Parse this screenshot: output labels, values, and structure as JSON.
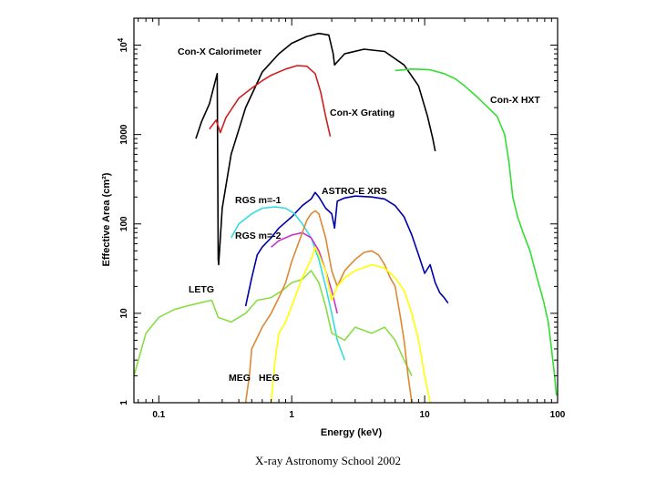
{
  "chart_data": {
    "type": "line",
    "title": "",
    "xlabel": "Energy (keV)",
    "ylabel": "Effective Area (cm²)",
    "xscale": "log",
    "yscale": "log",
    "xlim": [
      0.065,
      100
    ],
    "ylim": [
      1,
      20000
    ],
    "x_ticks": [
      0.1,
      1,
      10,
      100
    ],
    "x_tick_labels": [
      "0.1",
      "1",
      "10",
      "100"
    ],
    "y_ticks": [
      1,
      10,
      100,
      1000,
      10000
    ],
    "y_tick_labels": [
      "1",
      "10",
      "100",
      "1000",
      "10^4"
    ],
    "grid": false,
    "legend": "inline labels",
    "series": [
      {
        "name": "Con-X Calorimeter",
        "label": "Con-X Calorimeter",
        "color": "#000000",
        "points": [
          [
            0.19,
            900
          ],
          [
            0.21,
            1400
          ],
          [
            0.24,
            2200
          ],
          [
            0.275,
            4800
          ],
          [
            0.28,
            40
          ],
          [
            0.282,
            35
          ],
          [
            0.3,
            150
          ],
          [
            0.35,
            600
          ],
          [
            0.45,
            2000
          ],
          [
            0.6,
            5000
          ],
          [
            0.8,
            8000
          ],
          [
            1.0,
            10500
          ],
          [
            1.3,
            12500
          ],
          [
            1.6,
            13500
          ],
          [
            1.9,
            13000
          ],
          [
            2.05,
            8000
          ],
          [
            2.1,
            6000
          ],
          [
            2.2,
            6500
          ],
          [
            2.5,
            8000
          ],
          [
            3.5,
            9000
          ],
          [
            5,
            8500
          ],
          [
            7,
            6000
          ],
          [
            9,
            3500
          ],
          [
            10.5,
            1600
          ],
          [
            11.5,
            900
          ],
          [
            12,
            650
          ]
        ]
      },
      {
        "name": "Con-X Grating",
        "label": "Con-X Grating",
        "color": "#cc1f1f",
        "points": [
          [
            0.24,
            1150
          ],
          [
            0.27,
            1450
          ],
          [
            0.29,
            1050
          ],
          [
            0.32,
            1550
          ],
          [
            0.4,
            2550
          ],
          [
            0.5,
            3300
          ],
          [
            0.6,
            4000
          ],
          [
            0.7,
            4600
          ],
          [
            0.9,
            5400
          ],
          [
            1.1,
            5900
          ],
          [
            1.3,
            5800
          ],
          [
            1.5,
            4800
          ],
          [
            1.65,
            3000
          ],
          [
            1.8,
            1600
          ],
          [
            1.95,
            950
          ]
        ]
      },
      {
        "name": "Con-X HXT",
        "label": "Con-X HXT",
        "color": "#33dd33",
        "points": [
          [
            6,
            5200
          ],
          [
            8,
            5400
          ],
          [
            11,
            5300
          ],
          [
            14,
            4800
          ],
          [
            17,
            4200
          ],
          [
            20,
            3500
          ],
          [
            25,
            2600
          ],
          [
            30,
            2000
          ],
          [
            35,
            1600
          ],
          [
            40,
            1000
          ],
          [
            43,
            500
          ],
          [
            46,
            200
          ],
          [
            50,
            120
          ],
          [
            55,
            80
          ],
          [
            62,
            50
          ],
          [
            70,
            25
          ],
          [
            78,
            14
          ],
          [
            85,
            8
          ],
          [
            90,
            4
          ],
          [
            95,
            2
          ],
          [
            98,
            1.2
          ]
        ]
      },
      {
        "name": "ASTRO-E XRS",
        "label": "ASTRO-E XRS",
        "color": "#0000aa",
        "points": [
          [
            0.45,
            12
          ],
          [
            0.5,
            25
          ],
          [
            0.55,
            45
          ],
          [
            0.6,
            55
          ],
          [
            0.7,
            70
          ],
          [
            0.8,
            90
          ],
          [
            1.0,
            120
          ],
          [
            1.2,
            160
          ],
          [
            1.4,
            190
          ],
          [
            1.5,
            225
          ],
          [
            1.6,
            200
          ],
          [
            1.8,
            150
          ],
          [
            2.0,
            130
          ],
          [
            2.1,
            90
          ],
          [
            2.2,
            180
          ],
          [
            2.5,
            195
          ],
          [
            3,
            205
          ],
          [
            4,
            200
          ],
          [
            5,
            190
          ],
          [
            6,
            160
          ],
          [
            7,
            120
          ],
          [
            8,
            75
          ],
          [
            9,
            45
          ],
          [
            10,
            28
          ],
          [
            11,
            35
          ],
          [
            12,
            22
          ],
          [
            13,
            17
          ],
          [
            14,
            15
          ],
          [
            15,
            13
          ]
        ]
      },
      {
        "name": "RGS m=-1",
        "label": "RGS m=-1",
        "color": "#33dddd",
        "points": [
          [
            0.35,
            70
          ],
          [
            0.4,
            100
          ],
          [
            0.5,
            130
          ],
          [
            0.6,
            150
          ],
          [
            0.75,
            155
          ],
          [
            0.9,
            150
          ],
          [
            1.05,
            130
          ],
          [
            1.2,
            100
          ],
          [
            1.4,
            70
          ],
          [
            1.6,
            40
          ],
          [
            1.8,
            20
          ],
          [
            2.0,
            10
          ],
          [
            2.2,
            5
          ],
          [
            2.5,
            3
          ]
        ]
      },
      {
        "name": "RGS m=-2",
        "label": "RGS m=-2",
        "color": "#cc33cc",
        "points": [
          [
            0.7,
            55
          ],
          [
            0.8,
            65
          ],
          [
            1.0,
            75
          ],
          [
            1.2,
            80
          ],
          [
            1.4,
            70
          ],
          [
            1.6,
            50
          ],
          [
            1.8,
            30
          ],
          [
            2.0,
            18
          ],
          [
            2.2,
            10
          ]
        ]
      },
      {
        "name": "LETG",
        "label": "LETG",
        "color": "#88dd44",
        "points": [
          [
            0.065,
            2
          ],
          [
            0.08,
            6
          ],
          [
            0.1,
            9
          ],
          [
            0.13,
            11
          ],
          [
            0.16,
            12
          ],
          [
            0.2,
            13
          ],
          [
            0.25,
            14
          ],
          [
            0.28,
            9
          ],
          [
            0.35,
            8
          ],
          [
            0.45,
            10
          ],
          [
            0.55,
            14
          ],
          [
            0.7,
            15
          ],
          [
            0.85,
            18
          ],
          [
            1.0,
            22
          ],
          [
            1.2,
            24
          ],
          [
            1.4,
            30
          ],
          [
            1.6,
            22
          ],
          [
            1.8,
            12
          ],
          [
            2.0,
            6
          ],
          [
            2.5,
            5
          ],
          [
            3,
            7
          ],
          [
            4,
            6
          ],
          [
            5,
            7
          ],
          [
            6,
            5
          ],
          [
            7,
            3
          ],
          [
            8,
            2
          ]
        ]
      },
      {
        "name": "MEG",
        "label": "MEG",
        "color": "#dd8833",
        "points": [
          [
            0.45,
            1
          ],
          [
            0.48,
            2
          ],
          [
            0.5,
            4
          ],
          [
            0.6,
            7
          ],
          [
            0.7,
            10
          ],
          [
            0.8,
            15
          ],
          [
            0.9,
            22
          ],
          [
            1.0,
            38
          ],
          [
            1.2,
            80
          ],
          [
            1.3,
            110
          ],
          [
            1.4,
            130
          ],
          [
            1.5,
            140
          ],
          [
            1.6,
            130
          ],
          [
            1.8,
            70
          ],
          [
            2.0,
            30
          ],
          [
            2.2,
            20
          ],
          [
            2.5,
            30
          ],
          [
            3,
            40
          ],
          [
            3.5,
            48
          ],
          [
            4,
            50
          ],
          [
            4.5,
            45
          ],
          [
            5,
            35
          ],
          [
            5.5,
            25
          ],
          [
            6,
            20
          ],
          [
            6.5,
            10
          ],
          [
            7,
            5
          ],
          [
            7.5,
            2
          ],
          [
            8,
            1
          ]
        ]
      },
      {
        "name": "HEG",
        "label": "HEG",
        "color": "#ffff00",
        "points": [
          [
            0.7,
            1
          ],
          [
            0.75,
            3
          ],
          [
            0.8,
            6
          ],
          [
            0.9,
            8
          ],
          [
            1.0,
            12
          ],
          [
            1.2,
            25
          ],
          [
            1.4,
            40
          ],
          [
            1.5,
            55
          ],
          [
            1.6,
            45
          ],
          [
            1.8,
            30
          ],
          [
            2.0,
            14
          ],
          [
            2.2,
            20
          ],
          [
            2.5,
            25
          ],
          [
            3,
            30
          ],
          [
            4,
            35
          ],
          [
            5,
            32
          ],
          [
            6,
            25
          ],
          [
            7,
            18
          ],
          [
            8,
            10
          ],
          [
            9,
            5
          ],
          [
            10,
            2
          ],
          [
            11,
            1
          ]
        ]
      }
    ]
  },
  "footer": {
    "text": "X-ray Astronomy School 2002"
  }
}
